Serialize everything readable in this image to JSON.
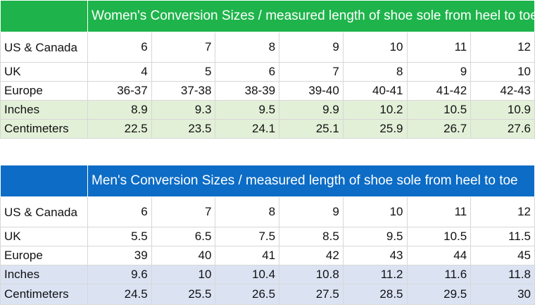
{
  "colors": {
    "women_accent": "#1eb44b",
    "women_band": "#e3f0d8",
    "men_accent": "#0c6cc6",
    "men_band": "#dbe3f3"
  },
  "women": {
    "title": "Women's Conversion Sizes / measured length of shoe sole from heel to toe",
    "rows": [
      {
        "label": "US & Canada",
        "values": [
          "6",
          "7",
          "8",
          "9",
          "10",
          "11",
          "12"
        ]
      },
      {
        "label": "UK",
        "values": [
          "4",
          "5",
          "6",
          "7",
          "8",
          "9",
          "10"
        ]
      },
      {
        "label": "Europe",
        "values": [
          "36-37",
          "37-38",
          "38-39",
          "39-40",
          "40-41",
          "41-42",
          "42-43"
        ]
      },
      {
        "label": "Inches",
        "values": [
          "8.9",
          "9.3",
          "9.5",
          "9.9",
          "10.2",
          "10.5",
          "10.9"
        ]
      },
      {
        "label": "Centimeters",
        "values": [
          "22.5",
          "23.5",
          "24.1",
          "25.1",
          "25.9",
          "26.7",
          "27.6"
        ]
      }
    ]
  },
  "men": {
    "title": "Men's Conversion Sizes / measured length of shoe sole from heel to toe",
    "rows": [
      {
        "label": "US & Canada",
        "values": [
          "6",
          "7",
          "8",
          "9",
          "10",
          "11",
          "12"
        ]
      },
      {
        "label": "UK",
        "values": [
          "5.5",
          "6.5",
          "7.5",
          "8.5",
          "9.5",
          "10.5",
          "11.5"
        ]
      },
      {
        "label": "Europe",
        "values": [
          "39",
          "40",
          "41",
          "42",
          "43",
          "44",
          "45"
        ]
      },
      {
        "label": "Inches",
        "values": [
          "9.6",
          "10",
          "10.4",
          "10.8",
          "11.2",
          "11.6",
          "11.8"
        ]
      },
      {
        "label": "Centimeters",
        "values": [
          "24.5",
          "25.5",
          "26.5",
          "27.5",
          "28.5",
          "29.5",
          "30"
        ]
      }
    ]
  }
}
